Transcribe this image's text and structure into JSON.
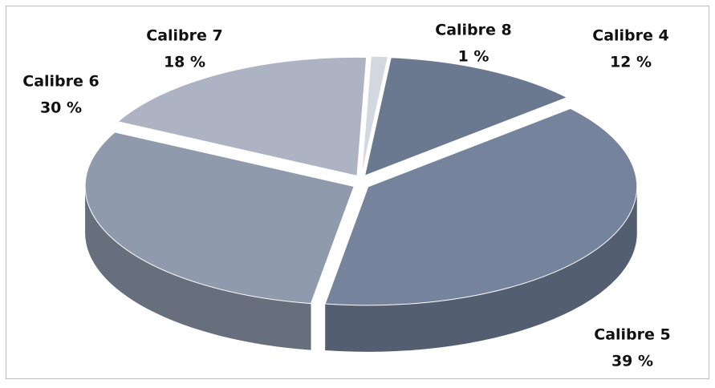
{
  "chart_data": {
    "type": "pie",
    "categories": [
      "Calibre 8",
      "Calibre 4",
      "Calibre 5",
      "Calibre 6",
      "Calibre 7"
    ],
    "values": [
      1,
      12,
      39,
      30,
      18
    ],
    "value_labels": [
      "1 %",
      "12 %",
      "39 %",
      "30 %",
      "18 %"
    ],
    "colors": [
      "#d3d7df",
      "#6a7890",
      "#75839d",
      "#8f9aad",
      "#adb3c2"
    ]
  }
}
